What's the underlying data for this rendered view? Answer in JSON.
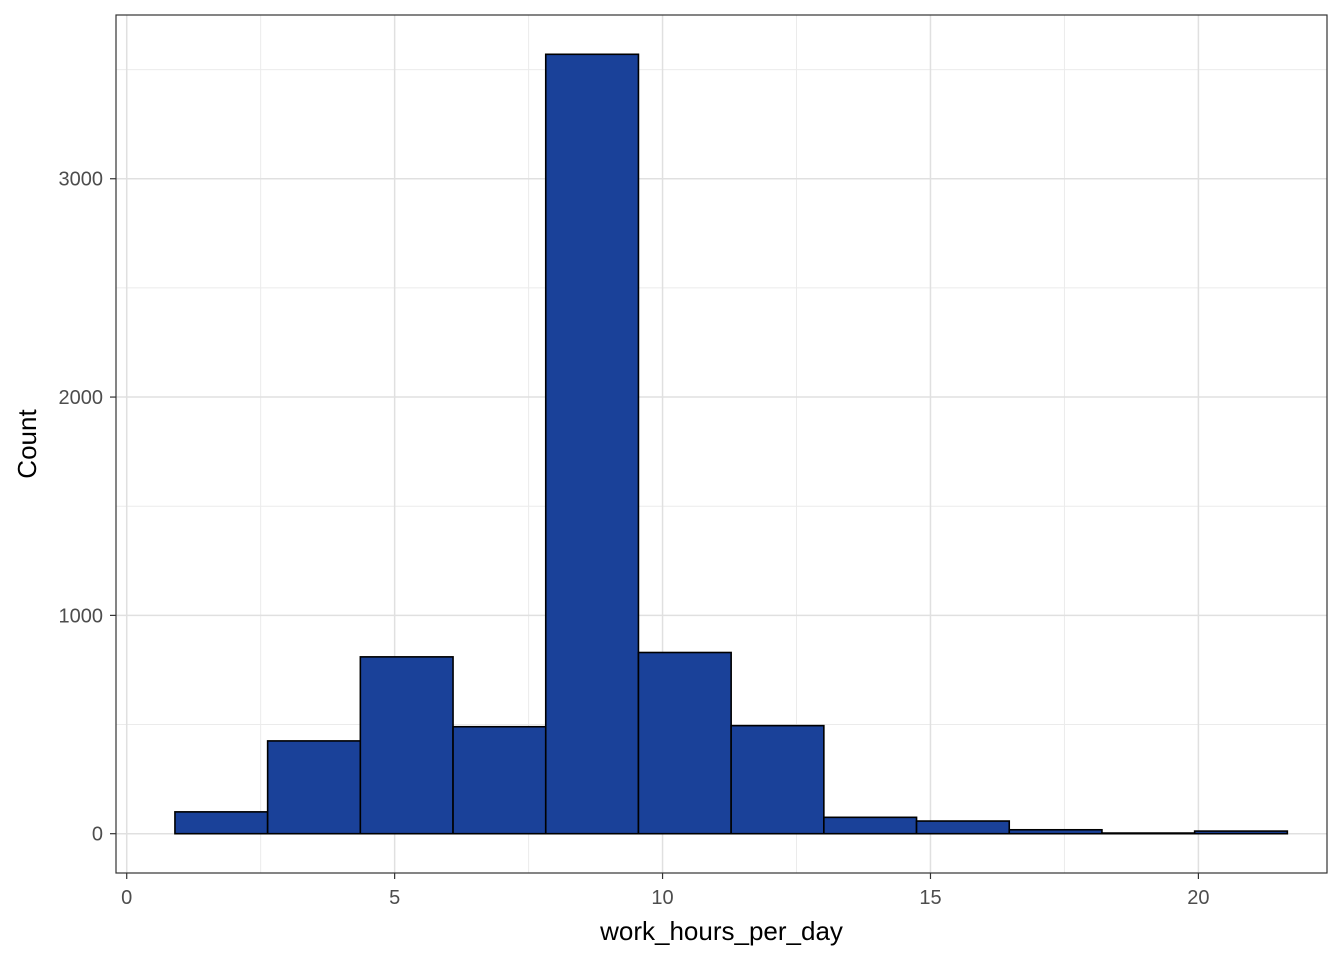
{
  "chart_data": {
    "type": "bar",
    "subtype": "histogram",
    "xlabel": "work_hours_per_day",
    "ylabel": "Count",
    "xlim": [
      -0.2,
      22.4
    ],
    "ylim": [
      -180,
      3750
    ],
    "x_ticks": [
      0,
      5,
      10,
      15,
      20
    ],
    "y_ticks": [
      0,
      1000,
      2000,
      3000
    ],
    "x_minor_ticks": [
      2.5,
      7.5,
      12.5,
      17.5
    ],
    "y_minor_ticks": [
      500,
      1500,
      2500,
      3500
    ],
    "grid": true,
    "fill_color": "#1a4199",
    "edge_color": "#000000",
    "bins": [
      {
        "x0": 0.9,
        "x1": 2.63,
        "count": 100
      },
      {
        "x0": 2.63,
        "x1": 4.36,
        "count": 425
      },
      {
        "x0": 4.36,
        "x1": 6.09,
        "count": 810
      },
      {
        "x0": 6.09,
        "x1": 7.82,
        "count": 490
      },
      {
        "x0": 7.82,
        "x1": 9.55,
        "count": 3570
      },
      {
        "x0": 9.55,
        "x1": 11.28,
        "count": 830
      },
      {
        "x0": 11.28,
        "x1": 13.01,
        "count": 495
      },
      {
        "x0": 13.01,
        "x1": 14.74,
        "count": 75
      },
      {
        "x0": 14.74,
        "x1": 16.47,
        "count": 58
      },
      {
        "x0": 16.47,
        "x1": 18.2,
        "count": 18
      },
      {
        "x0": 18.2,
        "x1": 19.93,
        "count": 3
      },
      {
        "x0": 19.93,
        "x1": 21.66,
        "count": 12
      }
    ]
  }
}
